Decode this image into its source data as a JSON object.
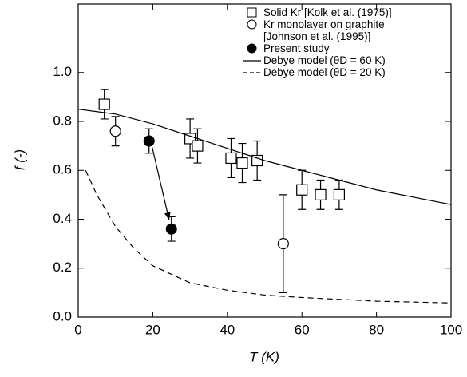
{
  "chart_data": {
    "type": "scatter",
    "xlabel": "T (K)",
    "ylabel": "f (-)",
    "xlim": [
      0,
      100
    ],
    "ylim": [
      0,
      1.28
    ],
    "xticks": [
      0,
      20,
      40,
      60,
      80,
      100
    ],
    "yticks": [
      {
        "value": 0,
        "label": "0.0"
      },
      {
        "value": 0.2,
        "label": "0.2"
      },
      {
        "value": 0.4,
        "label": "0.4"
      },
      {
        "value": 0.6,
        "label": "0.6"
      },
      {
        "value": 0.8,
        "label": "0.8"
      },
      {
        "value": 1,
        "label": "1.0"
      }
    ],
    "series": [
      {
        "name": "Solid Kr [Kolk et al. (1975)]",
        "marker": "open-square",
        "color": "#000000",
        "x": [
          7,
          30,
          32,
          41,
          44,
          48,
          60,
          65,
          70
        ],
        "values": [
          0.87,
          0.73,
          0.7,
          0.65,
          0.63,
          0.64,
          0.52,
          0.5,
          0.5
        ],
        "errors": [
          0.06,
          0.08,
          0.07,
          0.08,
          0.08,
          0.08,
          0.08,
          0.06,
          0.06
        ]
      },
      {
        "name": "Kr monolayer on graphite\n[Johnson et al. (1995)]",
        "marker": "open-circle",
        "color": "#000000",
        "x": [
          10,
          55
        ],
        "values": [
          0.76,
          0.3
        ],
        "errors": [
          0.06,
          0.2
        ]
      },
      {
        "name": "Present study",
        "marker": "filled-circle",
        "color": "#000000",
        "x": [
          19,
          25
        ],
        "values": [
          0.72,
          0.36
        ],
        "errors": [
          0.05,
          0.05
        ]
      },
      {
        "name": "Debye model (θD = 60 K)",
        "marker": "solid-line",
        "color": "#000000",
        "x": [
          0,
          10,
          20,
          30,
          40,
          50,
          60,
          70,
          80,
          90,
          100
        ],
        "values": [
          0.85,
          0.83,
          0.79,
          0.74,
          0.69,
          0.64,
          0.6,
          0.56,
          0.52,
          0.49,
          0.46
        ]
      },
      {
        "name": "Debye model (θD = 20 K)",
        "marker": "dashed-line",
        "color": "#000000",
        "x": [
          2,
          5,
          10,
          15,
          20,
          30,
          40,
          50,
          60,
          80,
          100
        ],
        "values": [
          0.6,
          0.5,
          0.37,
          0.28,
          0.21,
          0.14,
          0.11,
          0.09,
          0.08,
          0.065,
          0.058
        ]
      }
    ]
  }
}
